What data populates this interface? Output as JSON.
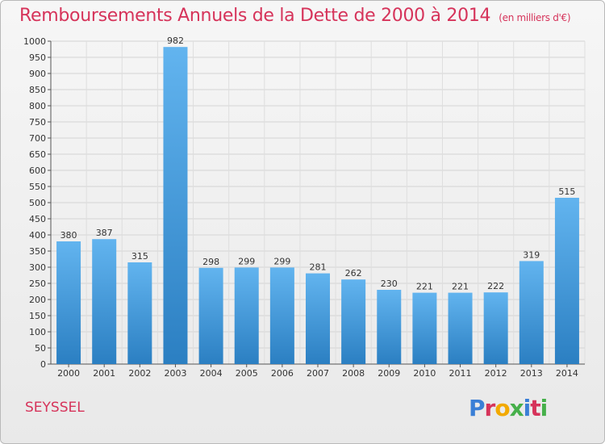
{
  "header": {
    "title": "Remboursements Annuels de la Dette de 2000 à 2014",
    "unit": "(en milliers d'€)"
  },
  "footer": {
    "commune": "SEYSSEL",
    "brand": "Proxiti"
  },
  "colors": {
    "bar_top": "#62b4ef",
    "bar_bottom": "#2b7fc2",
    "title": "#d6335a"
  },
  "chart_data": {
    "type": "bar",
    "title": "Remboursements Annuels de la Dette de 2000 à 2014",
    "categories": [
      "2000",
      "2001",
      "2002",
      "2003",
      "2004",
      "2005",
      "2006",
      "2007",
      "2008",
      "2009",
      "2010",
      "2011",
      "2012",
      "2013",
      "2014"
    ],
    "values": [
      380,
      387,
      315,
      982,
      298,
      299,
      299,
      281,
      262,
      230,
      221,
      221,
      222,
      319,
      515
    ],
    "ylim": [
      0,
      1000
    ],
    "yticks": [
      0,
      50,
      100,
      150,
      200,
      250,
      300,
      350,
      400,
      450,
      500,
      550,
      600,
      650,
      700,
      750,
      800,
      850,
      900,
      950,
      1000
    ],
    "grid": true
  }
}
